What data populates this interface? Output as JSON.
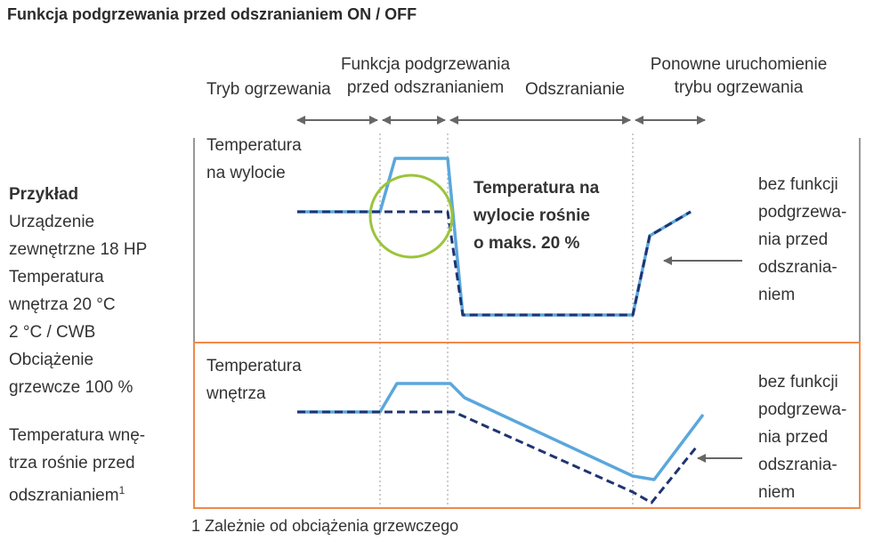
{
  "title": "Funkcja podgrzewania przed odszranianiem ON / OFF",
  "phases": {
    "heating": "Tryb ogrzewania",
    "preheat_line1": "Funkcja podgrzewania",
    "preheat_line2": "przed odszranianiem",
    "defrost": "Odszranianie",
    "restart_line1": "Ponowne uruchomienie",
    "restart_line2": "trybu ogrzewania"
  },
  "example": {
    "heading": "Przykład",
    "line1": "Urządzenie",
    "line2": "zewnętrzne 18 HP",
    "line3": "Temperatura",
    "line4": "wnętrza 20 °C",
    "line5": "2 °C / CWB",
    "line6": "Obciążenie",
    "line7": "grzewcze 100 %",
    "note_line1": "Temperatura wnę-",
    "note_line2": "trza rośnie przed",
    "note_line3": "odszranianiem",
    "note_sup": "1"
  },
  "top_panel": {
    "label_line1": "Temperatura",
    "label_line2": "na wylocie",
    "callout_line1": "Temperatura na",
    "callout_line2": "wylocie rośnie",
    "callout_line3": "o maks. 20 %",
    "right_note": [
      "bez funkcji",
      "podgrzewa-",
      "nia przed",
      "odszrania-",
      "niem"
    ]
  },
  "bottom_panel": {
    "label_line1": "Temperatura",
    "label_line2": "wnętrza",
    "right_note": [
      "bez funkcji",
      "podgrzewa-",
      "nia przed",
      "odszrania-",
      "niem"
    ]
  },
  "footnote": "1  Zależnie od obciążenia grzewczego",
  "colors": {
    "with_function": "#5aa7dc",
    "without_function": "#1f3471",
    "bottom_frame": "#f08a4b",
    "highlight_circle": "#9cc43a",
    "arrows": "#666666"
  }
}
